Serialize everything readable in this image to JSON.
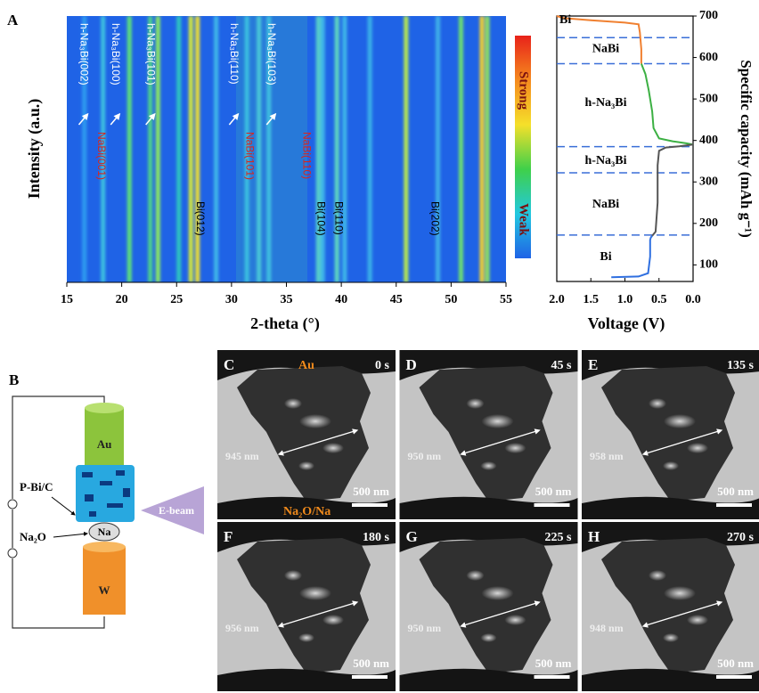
{
  "chart_data": [
    {
      "type": "heatmap",
      "label": "A",
      "xlabel": "2-theta (°)",
      "ylabel": "Intensity (a.u.)",
      "xlim": [
        15,
        55
      ],
      "xticks": [
        15,
        20,
        25,
        30,
        35,
        40,
        45,
        50,
        55
      ],
      "background": "#1f63e6",
      "colorbar": {
        "high": "Strong",
        "low": "Weak",
        "colors": [
          "#e8221a",
          "#f58a1e",
          "#f5e02a",
          "#3fd04a",
          "#22c8e0",
          "#1f63e6"
        ]
      },
      "peaks": [
        {
          "x": 16.6,
          "color": "#2d9cf0"
        },
        {
          "x": 18.3,
          "color": "#3cc0e0"
        },
        {
          "x": 20.7,
          "color": "#5fe07a"
        },
        {
          "x": 22.6,
          "color": "#4fd28a"
        },
        {
          "x": 23.3,
          "color": "#8ee860"
        },
        {
          "x": 25.2,
          "color": "#2ec6c0"
        },
        {
          "x": 26.3,
          "color": "#d7e83a"
        },
        {
          "x": 26.9,
          "color": "#f0e030"
        },
        {
          "x": 28.6,
          "color": "#3fb8e8"
        },
        {
          "x": 31.4,
          "color": "#3ac0e0"
        },
        {
          "x": 32.5,
          "color": "#48c8d8"
        },
        {
          "x": 33.4,
          "color": "#40c0e0"
        },
        {
          "x": 37.9,
          "color": "#58d0c8"
        },
        {
          "x": 38.3,
          "color": "#40b8e8"
        },
        {
          "x": 39.6,
          "color": "#60d8c0"
        },
        {
          "x": 40.3,
          "color": "#40b8e8"
        },
        {
          "x": 42.6,
          "color": "#3ab0e8"
        },
        {
          "x": 45.9,
          "color": "#b8e850"
        },
        {
          "x": 48.8,
          "color": "#40b0e8"
        },
        {
          "x": 50.9,
          "color": "#6ee070"
        },
        {
          "x": 52.8,
          "color": "#f2d030"
        },
        {
          "x": 53.3,
          "color": "#90e060"
        }
      ],
      "annotation_groups": [
        {
          "color": "#ffffff",
          "arrows": true,
          "items": [
            {
              "text": "h-Na₃Bi(002)",
              "x": 16.5
            },
            {
              "text": "h-Na₃Bi(100)",
              "x": 19.4
            },
            {
              "text": "h-Na₃Bi(101)",
              "x": 22.6
            },
            {
              "text": "h-Na₃Bi(110)",
              "x": 30.2
            },
            {
              "text": "h-Na₃Bi(103)",
              "x": 33.6
            }
          ]
        },
        {
          "color": "#d8261e",
          "arrows": false,
          "items": [
            {
              "text": "NaBi(001)",
              "x": 18.1
            },
            {
              "text": "NaBi(101)",
              "x": 31.6
            },
            {
              "text": "NaBi(110)",
              "x": 36.8
            }
          ]
        },
        {
          "color": "#000000",
          "arrows": false,
          "items": [
            {
              "text": "Bi(012)",
              "x": 27.1
            },
            {
              "text": "Bi(104)",
              "x": 38.1
            },
            {
              "text": "Bi(110)",
              "x": 39.7
            },
            {
              "text": "Bi(202)",
              "x": 48.5
            }
          ]
        }
      ]
    },
    {
      "type": "line",
      "xlabel": "Voltage (V)",
      "ylabel": "Specific capacity (mAh g⁻¹)",
      "xlim": [
        2,
        0
      ],
      "xticks": [
        {
          "value": 2,
          "label": "2.0"
        },
        1.5,
        {
          "value": 1,
          "label": "1.0"
        },
        0.5,
        {
          "value": 0,
          "label": "0.0"
        }
      ],
      "ylim": [
        60,
        700
      ],
      "yticks": [
        100,
        200,
        300,
        400,
        500,
        600,
        700
      ],
      "series": [
        {
          "color": "#f08030",
          "x": [
            2.0,
            1.9,
            1.5,
            1.0,
            0.8,
            0.78,
            0.76,
            0.76
          ],
          "values": [
            700,
            695,
            690,
            684,
            680,
            660,
            620,
            585
          ]
        },
        {
          "color": "#3cb043",
          "x": [
            0.76,
            0.7,
            0.65,
            0.6,
            0.58,
            0.5,
            0.3,
            0.1,
            0.0
          ],
          "values": [
            585,
            560,
            520,
            470,
            430,
            405,
            398,
            393,
            390
          ]
        },
        {
          "color": "#555555",
          "x": [
            0.0,
            0.2,
            0.4,
            0.5,
            0.52,
            0.52,
            0.55,
            0.6
          ],
          "values": [
            390,
            386,
            383,
            375,
            340,
            250,
            180,
            170
          ]
        },
        {
          "color": "#2f6fe0",
          "x": [
            0.6,
            0.62,
            0.63,
            0.63,
            0.66,
            0.8,
            1.2
          ],
          "values": [
            170,
            166,
            160,
            120,
            80,
            72,
            70
          ]
        }
      ],
      "boundary_color": "#3a6fd8",
      "boundaries": [
        648,
        585,
        385,
        322,
        172
      ],
      "regions": [
        {
          "label": "Bi",
          "y": 690
        },
        {
          "label": "NaBi",
          "y": 620
        },
        {
          "label": "h-Na₃Bi",
          "y": 490
        },
        {
          "label": "h-Na₃Bi",
          "y": 350
        },
        {
          "label": "NaBi",
          "y": 245
        },
        {
          "label": "Bi",
          "y": 118
        }
      ]
    }
  ],
  "schematic": {
    "label": "B",
    "top": "Au",
    "sample": "P-Bi/C",
    "beam": "E-beam",
    "oxide": "Na₂O",
    "source": "Na",
    "bottom": "W"
  },
  "tem": {
    "top": "Au",
    "bottom": "Na₂O/Na",
    "frames": [
      {
        "label": "C",
        "time": "0 s",
        "width": "945 nm",
        "scale": "500 nm"
      },
      {
        "label": "D",
        "time": "45 s",
        "width": "950 nm",
        "scale": "500 nm"
      },
      {
        "label": "E",
        "time": "135 s",
        "width": "958 nm",
        "scale": "500 nm"
      },
      {
        "label": "F",
        "time": "180 s",
        "width": "956 nm",
        "scale": "500 nm"
      },
      {
        "label": "G",
        "time": "225 s",
        "width": "950 nm",
        "scale": "500 nm"
      },
      {
        "label": "H",
        "time": "270 s",
        "width": "948 nm",
        "scale": "500 nm"
      }
    ]
  }
}
